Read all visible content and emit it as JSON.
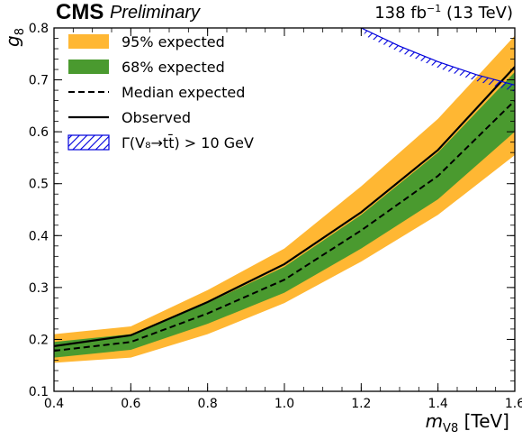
{
  "header": {
    "experiment": "CMS",
    "status": "Preliminary",
    "luminosity": "138 fb",
    "luminosity_exp": "−1",
    "energy": "(13 TeV)"
  },
  "chart_data": {
    "type": "line",
    "xlabel_main": "m",
    "xlabel_sub": "V8",
    "xlabel_unit": "[TeV]",
    "ylabel_main": "g",
    "ylabel_sub": "8",
    "xlim": [
      0.4,
      1.6
    ],
    "ylim": [
      0.1,
      0.8
    ],
    "x_ticks": [
      "0.4",
      "0.6",
      "0.8",
      "1.0",
      "1.2",
      "1.4",
      "1.6"
    ],
    "y_ticks": [
      "0.1",
      "0.2",
      "0.3",
      "0.4",
      "0.5",
      "0.6",
      "0.7",
      "0.8"
    ],
    "x": [
      0.4,
      0.6,
      0.8,
      1.0,
      1.2,
      1.4,
      1.6
    ],
    "series": [
      {
        "name": "95% expected",
        "lower": [
          0.155,
          0.165,
          0.21,
          0.27,
          0.35,
          0.44,
          0.555
        ],
        "upper": [
          0.21,
          0.225,
          0.295,
          0.375,
          0.495,
          0.625,
          0.785
        ],
        "color": "#ffb733"
      },
      {
        "name": "68% expected",
        "lower": [
          0.165,
          0.18,
          0.23,
          0.29,
          0.375,
          0.47,
          0.6
        ],
        "upper": [
          0.195,
          0.21,
          0.27,
          0.34,
          0.44,
          0.56,
          0.715
        ],
        "color": "#4a9a2f"
      },
      {
        "name": "Median expected",
        "values": [
          0.178,
          0.195,
          0.25,
          0.315,
          0.41,
          0.515,
          0.66
        ],
        "style": "dashed"
      },
      {
        "name": "Observed",
        "values": [
          0.187,
          0.208,
          0.272,
          0.345,
          0.445,
          0.565,
          0.725
        ],
        "style": "solid"
      }
    ],
    "excluded_region": {
      "name": "Γ(V₈→tt̄) > 10 GeV",
      "x": [
        1.2,
        1.3,
        1.4,
        1.5,
        1.6
      ],
      "boundary": [
        0.8,
        0.765,
        0.735,
        0.71,
        0.69
      ],
      "color": "#0000dd"
    },
    "legend": {
      "position": "top-left",
      "entries": [
        "95% expected",
        "68% expected",
        "Median expected",
        "Observed",
        "Γ(V₈→tt̄) > 10 GeV"
      ]
    }
  }
}
